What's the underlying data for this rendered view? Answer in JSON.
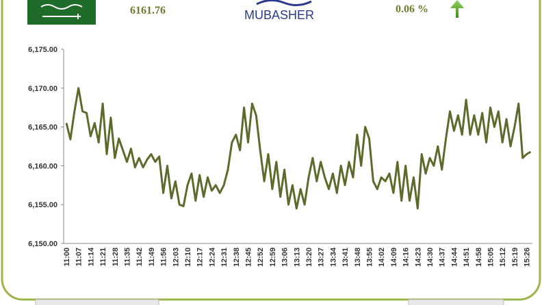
{
  "header": {
    "index_value": "6161.76",
    "logo": "MUBASHER",
    "change": "0.06 %"
  },
  "chart_data": {
    "type": "line",
    "color": "#5a6b2b",
    "categories": [
      "11:00",
      null,
      null,
      "11:07",
      null,
      null,
      "11:14",
      null,
      null,
      "11:21",
      null,
      null,
      "11:28",
      null,
      null,
      "11:35",
      null,
      null,
      "11:42",
      null,
      null,
      "11:49",
      null,
      null,
      "11:56",
      null,
      null,
      "12:03",
      null,
      null,
      "12:10",
      null,
      null,
      "12:17",
      null,
      null,
      "12:24",
      null,
      null,
      "12:31",
      null,
      null,
      "12:38",
      null,
      null,
      "12:45",
      null,
      null,
      "12:52",
      null,
      null,
      "12:59",
      null,
      null,
      "13:06",
      null,
      null,
      "13:13",
      null,
      null,
      "13:20",
      null,
      null,
      "13:27",
      null,
      null,
      "13:34",
      null,
      null,
      "13:41",
      null,
      null,
      "13:48",
      null,
      null,
      "13:55",
      null,
      null,
      "14:02",
      null,
      null,
      "14:09",
      null,
      null,
      "14:16",
      null,
      null,
      "14:23",
      null,
      null,
      "14:30",
      null,
      null,
      "14:37",
      null,
      null,
      "14:44",
      null,
      null,
      "14:51",
      null,
      null,
      "14:58",
      null,
      null,
      "15:05",
      null,
      null,
      "15:12",
      null,
      null,
      "15:19",
      null,
      null,
      "15:26",
      null
    ],
    "values": [
      6165.5,
      6163.4,
      6167.0,
      6170.0,
      6167.0,
      6166.8,
      6163.8,
      6165.5,
      6163.0,
      6168.0,
      6161.5,
      6166.2,
      6161.0,
      6163.5,
      6162.0,
      6160.5,
      6162.2,
      6159.8,
      6161.0,
      6159.8,
      6160.8,
      6161.5,
      6160.5,
      6161.2,
      6156.5,
      6160.0,
      6155.8,
      6158.0,
      6155.0,
      6154.8,
      6157.5,
      6159.0,
      6155.5,
      6158.8,
      6156.0,
      6158.5,
      6156.8,
      6157.5,
      6156.5,
      6157.5,
      6159.5,
      6163.0,
      6164.0,
      6162.0,
      6167.5,
      6163.0,
      6168.0,
      6166.5,
      6162.0,
      6158.0,
      6161.5,
      6157.0,
      6160.5,
      6156.0,
      6159.5,
      6155.0,
      6157.5,
      6154.5,
      6157.0,
      6155.0,
      6158.5,
      6161.0,
      6158.0,
      6160.5,
      6158.5,
      6157.0,
      6159.0,
      6156.5,
      6160.0,
      6157.5,
      6160.5,
      6158.5,
      6164.0,
      6160.0,
      6165.0,
      6163.5,
      6158.0,
      6157.0,
      6158.5,
      6158.0,
      6159.0,
      6156.5,
      6160.5,
      6155.5,
      6160.0,
      6155.5,
      6158.5,
      6154.5,
      6161.5,
      6159.0,
      6161.0,
      6160.0,
      6162.5,
      6159.5,
      6163.5,
      6167.0,
      6164.5,
      6166.5,
      6164.0,
      6168.5,
      6164.0,
      6166.5,
      6164.0,
      6166.8,
      6163.0,
      6167.5,
      6165.0,
      6167.0,
      6163.0,
      6166.0,
      6162.5,
      6165.0,
      6168.0,
      6161.0,
      6161.5,
      6161.8
    ],
    "ylim": [
      6150,
      6175
    ],
    "yticks": [
      {
        "value": 6150,
        "label": "6,150.00"
      },
      {
        "value": 6155,
        "label": "6,155.00"
      },
      {
        "value": 6160,
        "label": "6,160.00"
      },
      {
        "value": 6165,
        "label": "6,165.00"
      },
      {
        "value": 6170,
        "label": "6,170.00"
      },
      {
        "value": 6175,
        "label": "6,175.00"
      }
    ]
  }
}
